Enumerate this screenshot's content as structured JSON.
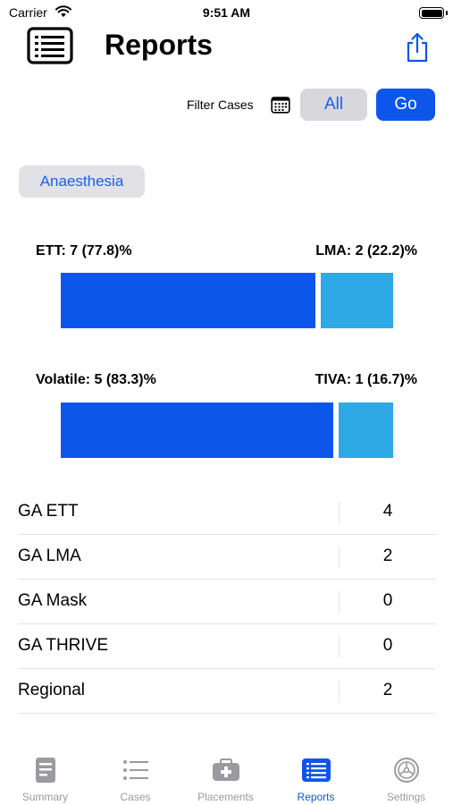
{
  "status_bar": {
    "carrier": "Carrier",
    "time": "9:51 AM"
  },
  "header": {
    "title": "Reports"
  },
  "filter": {
    "label": "Filter Cases",
    "all_label": "All",
    "go_label": "Go"
  },
  "category": {
    "label": "Anaesthesia"
  },
  "airway_bar": {
    "left_label": "ETT: 7 (77.8)%",
    "right_label": "LMA: 2 (22.2)%",
    "left_value": 7,
    "right_value": 2
  },
  "maintenance_bar": {
    "left_label": "Volatile: 5 (83.3)%",
    "right_label": "TIVA: 1 (16.7)%",
    "left_value": 5,
    "right_value": 1
  },
  "table": {
    "rows": [
      {
        "label": "GA ETT",
        "count": "4"
      },
      {
        "label": "GA LMA",
        "count": "2"
      },
      {
        "label": "GA Mask",
        "count": "0"
      },
      {
        "label": "GA THRIVE",
        "count": "0"
      },
      {
        "label": "Regional",
        "count": "2"
      }
    ]
  },
  "tabs": [
    {
      "label": "Summary",
      "icon": "document-icon",
      "active": false
    },
    {
      "label": "Cases",
      "icon": "list-icon",
      "active": false
    },
    {
      "label": "Placements",
      "icon": "medical-kit-icon",
      "active": false
    },
    {
      "label": "Reports",
      "icon": "report-list-icon",
      "active": true
    },
    {
      "label": "Settings",
      "icon": "gear-icon",
      "active": false
    }
  ],
  "colors": {
    "accent": "#0c56ea",
    "secondary_bar": "#2fa8e6",
    "inactive_tab": "#9a9a9f"
  }
}
